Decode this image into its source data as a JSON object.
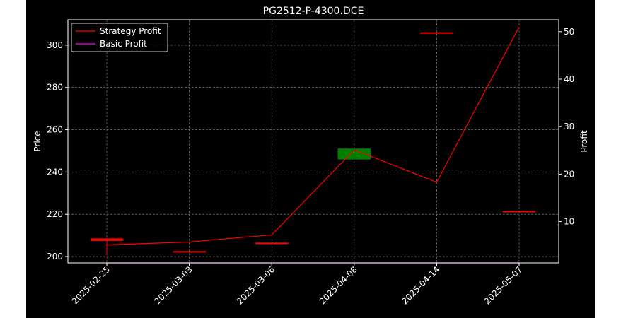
{
  "chart_data": {
    "type": "candlestick-line",
    "title": "PG2512-P-4300.DCE",
    "xlabel": "",
    "ylabel": "Price",
    "y2label": "Profit",
    "categories": [
      "2025-02-25",
      "2025-03-03",
      "2025-03-06",
      "2025-04-08",
      "2025-04-14",
      "2025-05-07"
    ],
    "ylim": [
      197,
      312
    ],
    "y2lim": [
      1.3,
      52.5
    ],
    "yticks": [
      200,
      220,
      240,
      260,
      280,
      300
    ],
    "y2ticks": [
      10,
      20,
      30,
      40,
      50
    ],
    "candles": [
      {
        "date": "2025-02-25",
        "open": 207.5,
        "close": 208.5,
        "high": 208.5,
        "low": 200.5,
        "color": "#ff0000"
      },
      {
        "date": "2025-03-03",
        "open": 202.5,
        "close": 202.5,
        "high": 202.5,
        "low": 202.5,
        "color": "#ff0000"
      },
      {
        "date": "2025-03-06",
        "open": 206.5,
        "close": 206.5,
        "high": 206.5,
        "low": 206.5,
        "color": "#ff0000"
      },
      {
        "date": "2025-04-08",
        "open": 246.0,
        "close": 251.0,
        "high": 251.0,
        "low": 246.0,
        "color": "#008000"
      },
      {
        "date": "2025-04-14",
        "open": 306.0,
        "close": 306.0,
        "high": 306.0,
        "low": 306.0,
        "color": "#ff0000"
      },
      {
        "date": "2025-05-07",
        "open": 221.5,
        "close": 221.5,
        "high": 221.5,
        "low": 221.5,
        "color": "#ff0000"
      }
    ],
    "series": [
      {
        "name": "Strategy Profit",
        "axis": "right",
        "color": "#ff0000",
        "values": [
          5.1,
          5.7,
          7.2,
          25.1,
          18.3,
          51.0
        ]
      },
      {
        "name": "Basic Profit",
        "axis": "right",
        "color": "#ff00ff",
        "values": [
          1.3,
          1.3,
          1.3,
          1.3,
          1.3,
          1.3
        ]
      }
    ],
    "grid": true,
    "legend": "top-left",
    "colors": {
      "background": "#000000",
      "text": "#ffffff",
      "grid": "#888888",
      "outer_margin": "#ffffff"
    }
  }
}
